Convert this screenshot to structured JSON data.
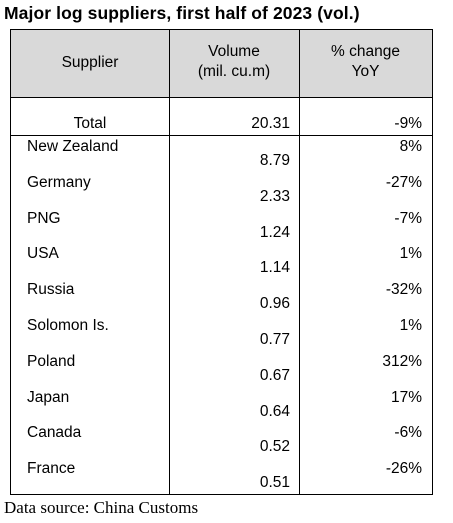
{
  "title": "Major log suppliers, first half of 2023 (vol.)",
  "header": {
    "supplier": "Supplier",
    "volume": "Volume\n(mil. cu.m)",
    "change": "% change\nYoY"
  },
  "total": {
    "label": "Total",
    "volume": "20.31",
    "change": "-9%"
  },
  "rows": [
    {
      "name": "New Zealand",
      "volume": "8.79",
      "change": "8%"
    },
    {
      "name": "Germany",
      "volume": "2.33",
      "change": "-27%"
    },
    {
      "name": "PNG",
      "volume": "1.24",
      "change": "-7%"
    },
    {
      "name": "USA",
      "volume": "1.14",
      "change": "1%"
    },
    {
      "name": "Russia",
      "volume": "0.96",
      "change": "-32%"
    },
    {
      "name": "Solomon Is.",
      "volume": "0.77",
      "change": "1%"
    },
    {
      "name": "Poland",
      "volume": "0.67",
      "change": "312%"
    },
    {
      "name": "Japan",
      "volume": "0.64",
      "change": "17%"
    },
    {
      "name": "Canada",
      "volume": "0.52",
      "change": "-6%"
    },
    {
      "name": "France",
      "volume": "0.51",
      "change": "-26%"
    }
  ],
  "footer": "Data source: China Customs"
}
